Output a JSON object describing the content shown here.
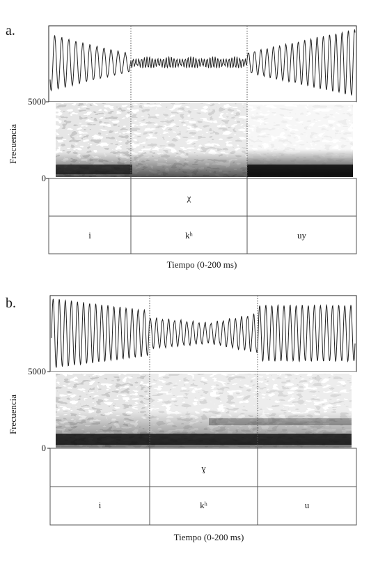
{
  "panels": [
    {
      "id": "a",
      "label": "a.",
      "ylabel": "Frecuencia",
      "freq_max": "5000",
      "freq_min": "0",
      "xlabel": "Tiempo (0-200 ms)",
      "tier1": [
        "",
        "χ",
        ""
      ],
      "tier2": [
        "i",
        "kʰ",
        "uy"
      ]
    },
    {
      "id": "b",
      "label": "b.",
      "ylabel": "Frecuencia",
      "freq_max": "5000",
      "freq_min": "0",
      "xlabel": "Tiempo (0-200 ms)",
      "tier1": [
        "",
        "ɣ",
        ""
      ],
      "tier2": [
        "i",
        "kʰ",
        "u"
      ]
    }
  ]
}
